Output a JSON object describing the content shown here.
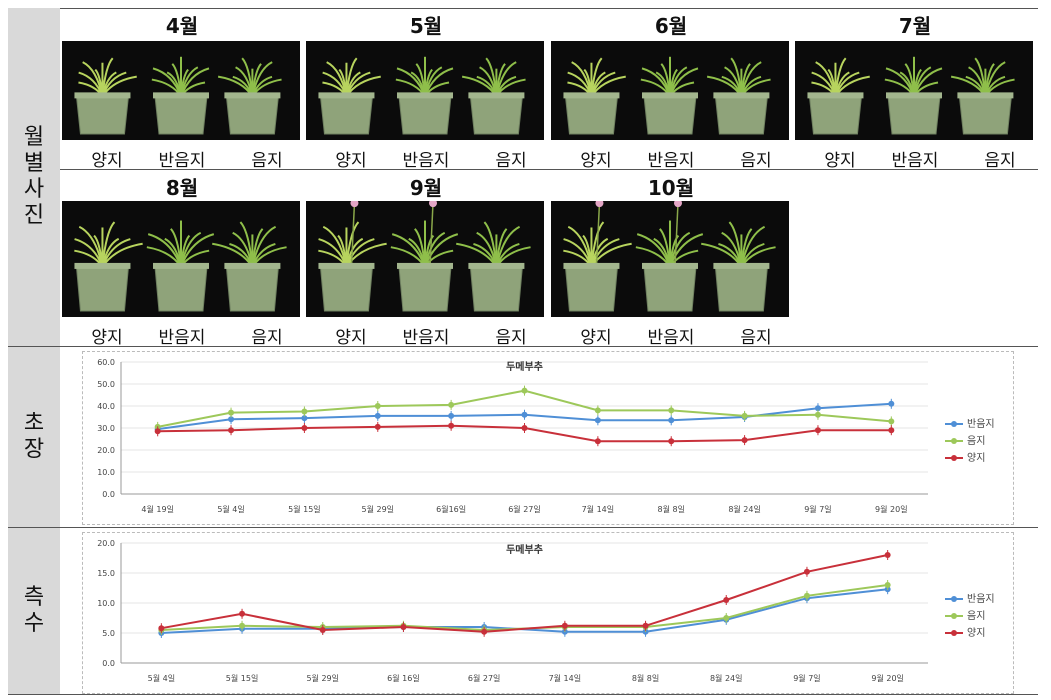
{
  "sections": {
    "photos_label": "월별 사진",
    "height_label": "초장",
    "tillers_label": "측수"
  },
  "months_row1": [
    "4월",
    "5월",
    "6월",
    "7월"
  ],
  "months_row2": [
    "8월",
    "9월",
    "10월"
  ],
  "captions": [
    "양지",
    "반음지",
    "음지"
  ],
  "colors": {
    "half_shade": "#4f8fd6",
    "shade": "#9dc85a",
    "sun": "#c8303a",
    "pot": "#8fa37a"
  },
  "chart_data": [
    {
      "type": "line",
      "title": "두메부추",
      "categories": [
        "4월 19일",
        "5월 4일",
        "5월 15일",
        "5월 29일",
        "6월16일",
        "6월 27일",
        "7월 14일",
        "8월 8일",
        "8월 24일",
        "9월 7일",
        "9월 20일"
      ],
      "ylim": [
        0,
        60
      ],
      "yticks": [
        "0.0",
        "10.0",
        "20.0",
        "30.0",
        "40.0",
        "50.0",
        "60.0"
      ],
      "legend_position": "right",
      "series": [
        {
          "name": "반음지",
          "color": "#4f8fd6",
          "values": [
            29.5,
            34,
            34.5,
            35.5,
            35.5,
            36,
            33.5,
            33.5,
            35,
            39,
            41
          ]
        },
        {
          "name": "음지",
          "color": "#9dc85a",
          "values": [
            30.5,
            37,
            37.5,
            40,
            40.5,
            47,
            38,
            38,
            35.5,
            36,
            33
          ]
        },
        {
          "name": "양지",
          "color": "#c8303a",
          "values": [
            28.5,
            29,
            30,
            30.5,
            31,
            30,
            24,
            24,
            24.5,
            29,
            29
          ]
        }
      ]
    },
    {
      "type": "line",
      "title": "두메부추",
      "categories": [
        "5월 4일",
        "5월 15일",
        "5월 29일",
        "6월 16일",
        "6월 27일",
        "7월 14일",
        "8월 8일",
        "8월 24일",
        "9월 7일",
        "9월 20일"
      ],
      "ylim": [
        0,
        20
      ],
      "yticks": [
        "0.0",
        "5.0",
        "10.0",
        "15.0",
        "20.0"
      ],
      "legend_position": "right",
      "series": [
        {
          "name": "반음지",
          "color": "#4f8fd6",
          "values": [
            5,
            5.7,
            5.7,
            6,
            6,
            5.2,
            5.2,
            7.2,
            10.8,
            12.3
          ]
        },
        {
          "name": "음지",
          "color": "#9dc85a",
          "values": [
            5.5,
            6.2,
            6,
            6.2,
            5.5,
            6,
            6,
            7.5,
            11.2,
            13
          ]
        },
        {
          "name": "양지",
          "color": "#c8303a",
          "values": [
            5.8,
            8.2,
            5.5,
            6,
            5.2,
            6.2,
            6.2,
            10.5,
            15.2,
            18
          ]
        }
      ]
    }
  ]
}
